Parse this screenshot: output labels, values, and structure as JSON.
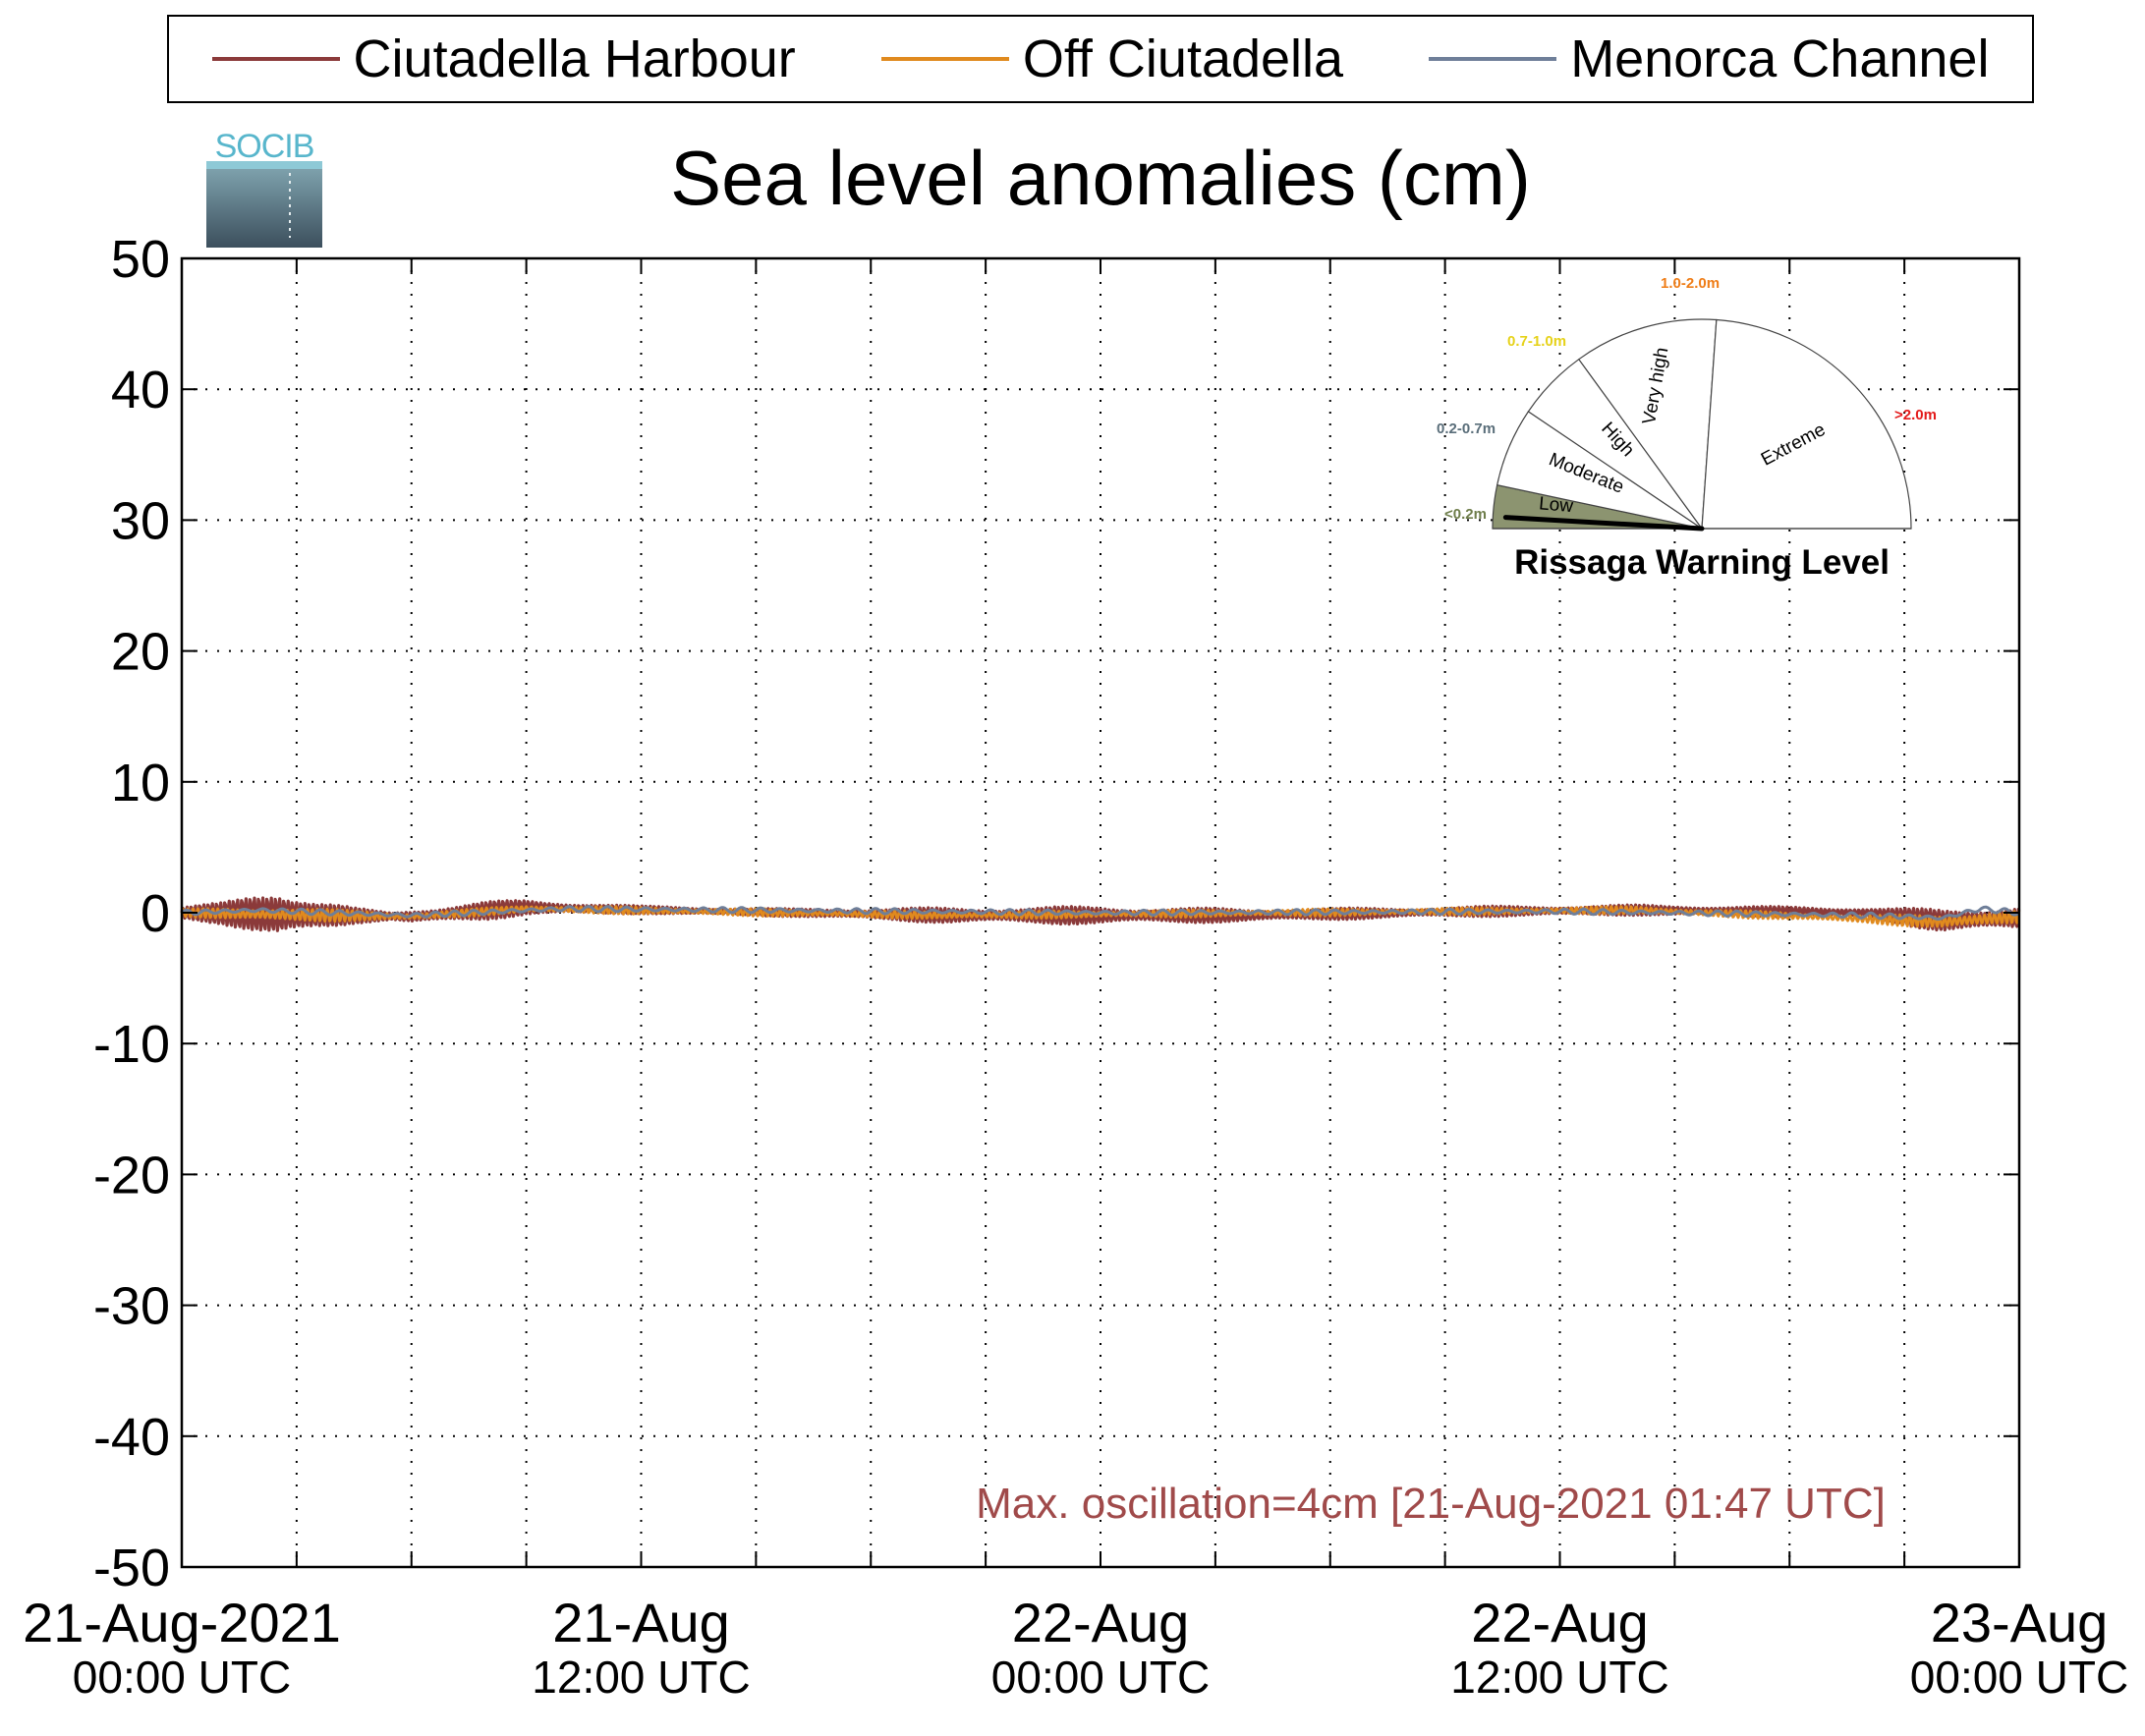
{
  "legend": {
    "entries": [
      {
        "label": "Ciutadella Harbour",
        "color": "#8b3a3a"
      },
      {
        "label": "Off Ciutadella",
        "color": "#e08a1e"
      },
      {
        "label": "Menorca Channel",
        "color": "#6f7f99"
      }
    ]
  },
  "logo": {
    "text": "SOCIB"
  },
  "chart_data": {
    "type": "line",
    "title": "Sea level anomalies (cm)",
    "xlabel": "",
    "ylabel": "",
    "ylim": [
      -50,
      50
    ],
    "y_ticks": [
      50,
      40,
      30,
      20,
      10,
      0,
      -10,
      -20,
      -30,
      -40,
      -50
    ],
    "xlim_hours": [
      0,
      48
    ],
    "x_tick_labels": [
      {
        "hour": 0,
        "date": "21-Aug-2021",
        "time": "00:00 UTC"
      },
      {
        "hour": 12,
        "date": "21-Aug",
        "time": "12:00 UTC"
      },
      {
        "hour": 24,
        "date": "22-Aug",
        "time": "00:00 UTC"
      },
      {
        "hour": 36,
        "date": "22-Aug",
        "time": "12:00 UTC"
      },
      {
        "hour": 48,
        "date": "23-Aug",
        "time": "00:00 UTC"
      }
    ],
    "x_minor_ticks_hours": [
      3,
      6,
      9,
      15,
      18,
      21,
      27,
      30,
      33,
      39,
      42,
      45
    ],
    "grid": true,
    "legend_position": "top",
    "series": [
      {
        "name": "Ciutadella Harbour",
        "color": "#8b3a3a",
        "envelope": [
          {
            "h": 0,
            "a": 0.5
          },
          {
            "h": 1,
            "a": 0.8
          },
          {
            "h": 1.5,
            "a": 1.2
          },
          {
            "h": 2.0,
            "a": 1.8
          },
          {
            "h": 2.5,
            "a": 2.4
          },
          {
            "h": 3.0,
            "a": 1.8
          },
          {
            "h": 3.5,
            "a": 1.2
          },
          {
            "h": 4.5,
            "a": 0.6
          },
          {
            "h": 5.5,
            "a": 0.3
          },
          {
            "h": 6,
            "a": 0.6
          },
          {
            "h": 8,
            "a": 0.7
          },
          {
            "h": 10,
            "a": 0.5
          },
          {
            "h": 12,
            "a": 0.3
          },
          {
            "h": 16,
            "a": 0.3
          },
          {
            "h": 20,
            "a": 0.6
          },
          {
            "h": 24,
            "a": 0.7
          },
          {
            "h": 28,
            "a": 0.5
          },
          {
            "h": 32,
            "a": 0.4
          },
          {
            "h": 36,
            "a": 0.4
          },
          {
            "h": 40,
            "a": 0.4
          },
          {
            "h": 44,
            "a": 0.4
          },
          {
            "h": 46,
            "a": 0.9
          },
          {
            "h": 48,
            "a": 1.0
          }
        ],
        "baseline": [
          {
            "h": 0,
            "v": 0.0
          },
          {
            "h": 6,
            "v": -0.3
          },
          {
            "h": 9,
            "v": 0.4
          },
          {
            "h": 14,
            "v": 0.1
          },
          {
            "h": 20,
            "v": -0.2
          },
          {
            "h": 28,
            "v": -0.2
          },
          {
            "h": 34,
            "v": 0.1
          },
          {
            "h": 38,
            "v": 0.2
          },
          {
            "h": 44,
            "v": 0.0
          },
          {
            "h": 46,
            "v": -0.6
          },
          {
            "h": 48,
            "v": -0.4
          }
        ]
      },
      {
        "name": "Off Ciutadella",
        "color": "#e08a1e",
        "envelope": [
          {
            "h": 0,
            "a": 0.3
          },
          {
            "h": 2.5,
            "a": 0.6
          },
          {
            "h": 6,
            "a": 0.3
          },
          {
            "h": 24,
            "a": 0.3
          },
          {
            "h": 44,
            "a": 0.3
          },
          {
            "h": 46,
            "a": 0.6
          },
          {
            "h": 48,
            "a": 0.5
          }
        ],
        "baseline": [
          {
            "h": 0,
            "v": 0.0
          },
          {
            "h": 6,
            "v": -0.3
          },
          {
            "h": 9,
            "v": 0.3
          },
          {
            "h": 20,
            "v": -0.2
          },
          {
            "h": 38,
            "v": 0.2
          },
          {
            "h": 46,
            "v": -0.7
          },
          {
            "h": 48,
            "v": -0.3
          }
        ]
      },
      {
        "name": "Menorca Channel",
        "color": "#6f7f99",
        "envelope": [
          {
            "h": 0,
            "a": 0.2
          },
          {
            "h": 24,
            "a": 0.2
          },
          {
            "h": 48,
            "a": 0.2
          }
        ],
        "baseline": [
          {
            "h": 0,
            "v": 0.0
          },
          {
            "h": 2,
            "v": 0.2
          },
          {
            "h": 6,
            "v": -0.2
          },
          {
            "h": 10,
            "v": 0.3
          },
          {
            "h": 24,
            "v": 0.0
          },
          {
            "h": 36,
            "v": 0.1
          },
          {
            "h": 44,
            "v": -0.2
          },
          {
            "h": 46,
            "v": -0.4
          },
          {
            "h": 47,
            "v": 0.3
          },
          {
            "h": 48,
            "v": 0.0
          }
        ]
      }
    ],
    "annotation": {
      "text": "Max. oscillation=4cm [21-Aug-2021 01:47 UTC]",
      "color": "#a04a4a"
    }
  },
  "gauge": {
    "title": "Rissaga Warning Level",
    "current_level": "Low",
    "needle_value_m": 0.05,
    "sectors": [
      {
        "label": "Low",
        "range": "<0.2m",
        "range_color": "#6e7d4a",
        "fill": "#8c9470",
        "active": true
      },
      {
        "label": "Moderate",
        "range": "0.2-0.7m",
        "range_color": "#5a6e7a",
        "fill": "#ffffff",
        "active": false
      },
      {
        "label": "High",
        "range": "0.7-1.0m",
        "range_color": "#e6d21a",
        "fill": "#ffffff",
        "active": false
      },
      {
        "label": "Very high",
        "range": "1.0-2.0m",
        "range_color": "#ef7d17",
        "fill": "#ffffff",
        "active": false
      },
      {
        "label": "Extreme",
        "range": ">2.0m",
        "range_color": "#e31a1a",
        "fill": "#ffffff",
        "active": false
      }
    ]
  }
}
